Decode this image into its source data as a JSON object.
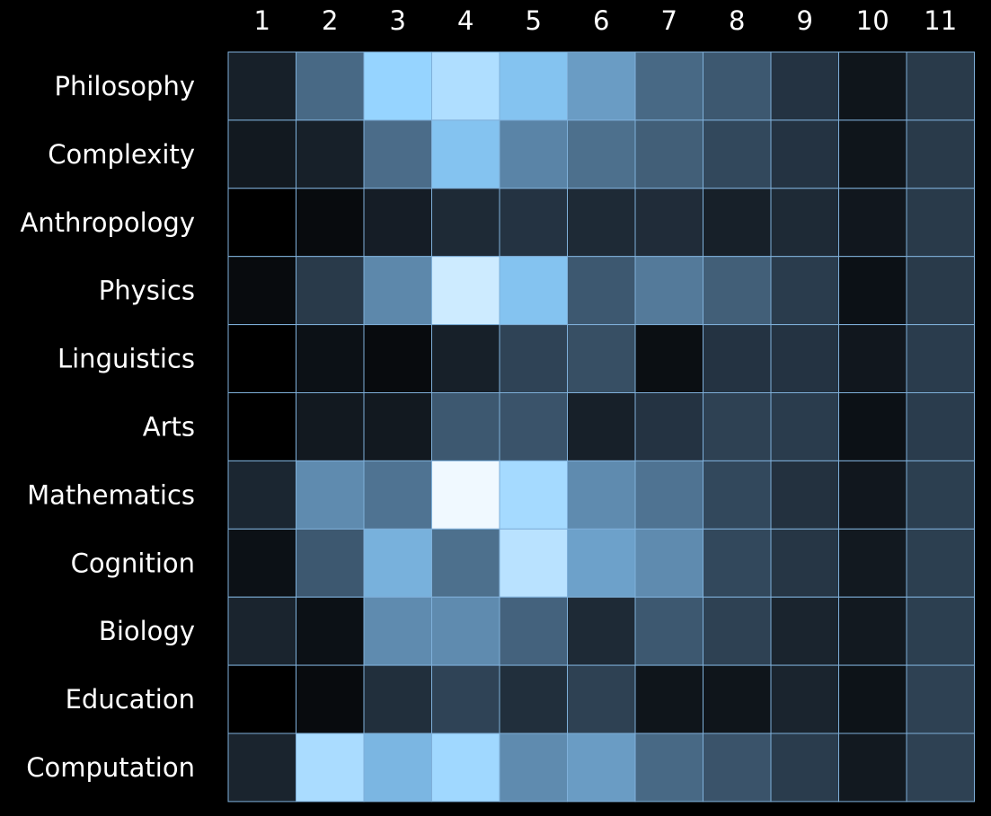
{
  "chart_data": {
    "type": "heatmap",
    "title": "",
    "xlabel": "",
    "ylabel": "",
    "columns": [
      "1",
      "2",
      "3",
      "4",
      "5",
      "6",
      "7",
      "8",
      "9",
      "10",
      "11"
    ],
    "rows": [
      "Philosophy",
      "Complexity",
      "Anthropology",
      "Physics",
      "Linguistics",
      "Arts",
      "Mathematics",
      "Cognition",
      "Biology",
      "Education",
      "Computation"
    ],
    "values": [
      [
        0.15,
        0.45,
        0.82,
        0.87,
        0.75,
        0.6,
        0.45,
        0.4,
        0.24,
        0.1,
        0.27
      ],
      [
        0.12,
        0.15,
        0.46,
        0.75,
        0.53,
        0.47,
        0.42,
        0.33,
        0.24,
        0.1,
        0.27
      ],
      [
        0.0,
        0.05,
        0.14,
        0.2,
        0.24,
        0.2,
        0.21,
        0.15,
        0.2,
        0.11,
        0.27
      ],
      [
        0.05,
        0.27,
        0.54,
        0.93,
        0.75,
        0.4,
        0.5,
        0.42,
        0.28,
        0.08,
        0.27
      ],
      [
        0.0,
        0.08,
        0.05,
        0.15,
        0.31,
        0.36,
        0.07,
        0.24,
        0.24,
        0.11,
        0.28
      ],
      [
        0.0,
        0.12,
        0.12,
        0.4,
        0.38,
        0.15,
        0.24,
        0.3,
        0.28,
        0.08,
        0.28
      ],
      [
        0.18,
        0.55,
        0.48,
        1.0,
        0.85,
        0.55,
        0.48,
        0.33,
        0.23,
        0.11,
        0.29
      ],
      [
        0.08,
        0.4,
        0.68,
        0.47,
        0.89,
        0.62,
        0.55,
        0.33,
        0.25,
        0.12,
        0.29
      ],
      [
        0.17,
        0.08,
        0.55,
        0.55,
        0.43,
        0.2,
        0.4,
        0.3,
        0.17,
        0.12,
        0.29
      ],
      [
        0.0,
        0.05,
        0.22,
        0.31,
        0.22,
        0.3,
        0.1,
        0.1,
        0.17,
        0.09,
        0.3
      ],
      [
        0.17,
        0.86,
        0.7,
        0.84,
        0.55,
        0.6,
        0.45,
        0.38,
        0.28,
        0.12,
        0.3
      ]
    ],
    "colormap": [
      "#000000",
      "#1e2a36",
      "#3d5870",
      "#6a9cc4",
      "#8cd0ff",
      "#f0f9ff"
    ],
    "grid_color": "#7fb0da",
    "background": "#000000",
    "text_color": "#ffffff",
    "legend": "none",
    "grid": true
  }
}
